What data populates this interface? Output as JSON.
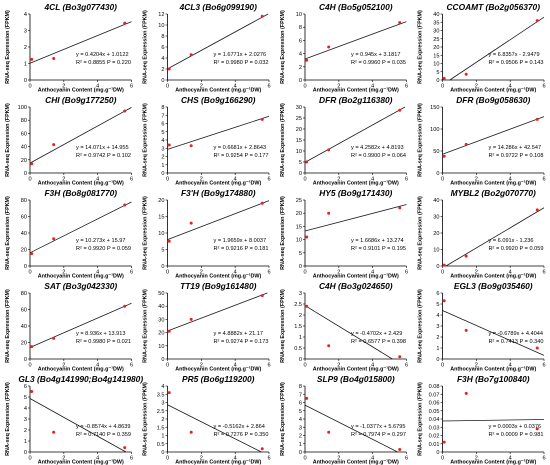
{
  "chart_data": [
    {
      "type": "scatter",
      "title": "4CL (Bo3g077430)",
      "ylabel": "RNA-seq Expression (FPKM)",
      "xlabel": "Anthocyanin Content (mg.g⁻¹DW)",
      "ylim": [
        0,
        4
      ],
      "yticks": [
        0,
        1,
        2,
        3,
        4
      ],
      "xlim": [
        0,
        6
      ],
      "xticks": [
        0,
        2,
        4,
        6
      ],
      "x": [
        0.1,
        1.4,
        5.6
      ],
      "y": [
        1.25,
        1.3,
        3.45
      ],
      "fit": {
        "slope": 0.4204,
        "intercept": 1.0122
      },
      "equation": "y = 0.4204x + 1.0122",
      "r2p": "R² = 0.8855 P = 0.220"
    },
    {
      "type": "scatter",
      "title": "4CL3 (Bo6g099190)",
      "ylabel": "RNA-seq Expression (FPKM)",
      "xlabel": "Anthocyanin Content (mg.g⁻¹DW)",
      "ylim": [
        0,
        12
      ],
      "yticks": [
        0,
        2,
        4,
        6,
        8,
        10,
        12
      ],
      "xlim": [
        0,
        6
      ],
      "xticks": [
        0,
        2,
        4,
        6
      ],
      "x": [
        0.1,
        1.4,
        5.6
      ],
      "y": [
        2.0,
        4.6,
        11.6
      ],
      "fit": {
        "slope": 1.6771,
        "intercept": 2.0276
      },
      "equation": "y = 1.6771x + 2.0276",
      "r2p": "R² = 0.9980 P = 0.032"
    },
    {
      "type": "scatter",
      "title": "C4H (Bo5g052100)",
      "ylabel": "RNA-seq Expression (FPKM)",
      "xlabel": "Anthocyanin Content (mg.g⁻¹DW)",
      "ylim": [
        0,
        10
      ],
      "yticks": [
        0,
        2,
        4,
        6,
        8,
        10
      ],
      "xlim": [
        0,
        6
      ],
      "xticks": [
        0,
        2,
        4,
        6
      ],
      "x": [
        0.1,
        1.4,
        5.6
      ],
      "y": [
        3.0,
        5.0,
        8.7
      ],
      "fit": {
        "slope": 0.945,
        "intercept": 3.1817
      },
      "equation": "y = 0.945x + 3.1817",
      "r2p": "R² = 0.9960 P = 0.035"
    },
    {
      "type": "scatter",
      "title": "CCOAMT (Bo2g056370)",
      "ylabel": "RNA-seq Expression (FPKM)",
      "xlabel": "Anthocyanin Content (mg.g⁻¹DW)",
      "ylim": [
        0,
        40
      ],
      "yticks": [
        0,
        5,
        10,
        15,
        20,
        25,
        30,
        35,
        40
      ],
      "xlim": [
        0,
        6
      ],
      "xticks": [
        0,
        2,
        4,
        6
      ],
      "x": [
        0.1,
        1.4,
        5.6
      ],
      "y": [
        1.0,
        3.5,
        36.0
      ],
      "fit": {
        "slope": 6.8357,
        "intercept": -2.9479
      },
      "equation": "y = 6.8357x - 2.9479",
      "r2p": "R² = 0.9506 P = 0.143"
    },
    {
      "type": "scatter",
      "title": "CHI (Bo9g177250)",
      "ylabel": "RNA-seq Expression (FPKM)",
      "xlabel": "Anthocyanin Content (mg.g⁻¹DW)",
      "ylim": [
        0,
        100
      ],
      "yticks": [
        0,
        20,
        40,
        60,
        80,
        100
      ],
      "xlim": [
        0,
        6
      ],
      "xticks": [
        0,
        2,
        4,
        6
      ],
      "x": [
        0.1,
        1.4,
        5.6
      ],
      "y": [
        14,
        43,
        94
      ],
      "fit": {
        "slope": 14.071,
        "intercept": 14.955
      },
      "equation": "y = 14.071x + 14.955",
      "r2p": "R² = 0.9742 P = 0.102"
    },
    {
      "type": "scatter",
      "title": "CHS (Bo9g166290)",
      "ylabel": "RNA-seq Expression (FPKM)",
      "xlabel": "Anthocyanin Content (mg.g⁻¹DW)",
      "ylim": [
        0,
        8
      ],
      "yticks": [
        0,
        1,
        2,
        3,
        4,
        5,
        6,
        7,
        8
      ],
      "xlim": [
        0,
        6
      ],
      "xticks": [
        0,
        2,
        4,
        6
      ],
      "x": [
        0.1,
        1.4,
        5.6
      ],
      "y": [
        3.4,
        3.3,
        6.5
      ],
      "fit": {
        "slope": 0.6681,
        "intercept": 2.8643
      },
      "equation": "y = 0.6681x + 2.8643",
      "r2p": "R² = 0.9254 P = 0.177"
    },
    {
      "type": "scatter",
      "title": "DFR (Bo2g116380)",
      "ylabel": "RNA-seq Expression (FPKM)",
      "xlabel": "Anthocyanin Content (mg.g⁻¹DW)",
      "ylim": [
        0,
        30
      ],
      "yticks": [
        0,
        5,
        10,
        15,
        20,
        25,
        30
      ],
      "xlim": [
        0,
        6
      ],
      "xticks": [
        0,
        2,
        4,
        6
      ],
      "x": [
        0.1,
        1.4,
        5.6
      ],
      "y": [
        5.0,
        10.5,
        28.5
      ],
      "fit": {
        "slope": 4.2582,
        "intercept": 4.8193
      },
      "equation": "y = 4.2582x + 4.8193",
      "r2p": "R² = 0.9900 P = 0.064"
    },
    {
      "type": "scatter",
      "title": "DFR (Bo9g058630)",
      "ylabel": "RNA-seq Expression (FPKM)",
      "xlabel": "Anthocyanin Content (mg.g⁻¹DW)",
      "ylim": [
        0,
        150
      ],
      "yticks": [
        0,
        50,
        100,
        150
      ],
      "xlim": [
        0,
        6
      ],
      "xticks": [
        0,
        2,
        4,
        6
      ],
      "x": [
        0.1,
        1.4,
        5.6
      ],
      "y": [
        38,
        65,
        122
      ],
      "fit": {
        "slope": 14.286,
        "intercept": 42.547
      },
      "equation": "y = 14.286x + 42.547",
      "r2p": "R² = 0.9722 P = 0.108"
    },
    {
      "type": "scatter",
      "title": "F3H (Bo8g081770)",
      "ylabel": "RNA-seq Expression (FPKM)",
      "xlabel": "Anthocyanin Content (mg.g⁻¹DW)",
      "ylim": [
        0,
        80
      ],
      "yticks": [
        0,
        20,
        40,
        60,
        80
      ],
      "xlim": [
        0,
        6
      ],
      "xticks": [
        0,
        2,
        4,
        6
      ],
      "x": [
        0.1,
        1.4,
        5.6
      ],
      "y": [
        15,
        33,
        74
      ],
      "fit": {
        "slope": 10.273,
        "intercept": 15.97
      },
      "equation": "y = 10.273x + 15.97",
      "r2p": "R² = 0.9920 P = 0.059"
    },
    {
      "type": "scatter",
      "title": "F3'H (Bo9g174880)",
      "ylabel": "RNA-seq Expression (FPKM)",
      "xlabel": "Anthocyanin Content (mg.g⁻¹DW)",
      "ylim": [
        0,
        20
      ],
      "yticks": [
        0,
        5,
        10,
        15,
        20
      ],
      "xlim": [
        0,
        6
      ],
      "xticks": [
        0,
        2,
        4,
        6
      ],
      "x": [
        0.1,
        1.4,
        5.6
      ],
      "y": [
        7.5,
        13.0,
        19.0
      ],
      "fit": {
        "slope": 1.9659,
        "intercept": 8.0037
      },
      "equation": "y = 1.9659x + 8.0037",
      "r2p": "R² = 0.9216 P = 0.181"
    },
    {
      "type": "scatter",
      "title": "HY5 (Bo9g171430)",
      "ylabel": "RNA-seq Expression (FPKM)",
      "xlabel": "Anthocyanin Content (mg.g⁻¹DW)",
      "ylim": [
        0,
        25
      ],
      "yticks": [
        0,
        5,
        10,
        15,
        20,
        25
      ],
      "xlim": [
        0,
        6
      ],
      "xticks": [
        0,
        2,
        4,
        6
      ],
      "x": [
        0.1,
        1.4,
        5.6
      ],
      "y": [
        11,
        20,
        22
      ],
      "fit": {
        "slope": 1.6686,
        "intercept": 13.274
      },
      "equation": "y = 1.6686x + 13.274",
      "r2p": "R² = 0.9101 P = 0.195"
    },
    {
      "type": "scatter",
      "title": "MYBL2 (Bo2g070770)",
      "ylabel": "RNA-seq Expression (FPKM)",
      "xlabel": "Anthocyanin Content (mg.g⁻¹DW)",
      "ylim": [
        0,
        40
      ],
      "yticks": [
        0,
        10,
        20,
        30,
        40
      ],
      "xlim": [
        0,
        6
      ],
      "xticks": [
        0,
        2,
        4,
        6
      ],
      "x": [
        0.1,
        1.4,
        5.6
      ],
      "y": [
        0.5,
        6.0,
        34.0
      ],
      "fit": {
        "slope": 6.091,
        "intercept": -1.236
      },
      "equation": "y = 6.091x - 1.236",
      "r2p": "R² = 0.9920 P = 0.059"
    },
    {
      "type": "scatter",
      "title": "SAT (Bo3g042330)",
      "ylabel": "RNA-seq Expression (FPKM)",
      "xlabel": "Anthocyanin Content (mg.g⁻¹DW)",
      "ylim": [
        0,
        80
      ],
      "yticks": [
        0,
        20,
        40,
        60,
        80
      ],
      "xlim": [
        0,
        6
      ],
      "xticks": [
        0,
        2,
        4,
        6
      ],
      "x": [
        0.1,
        1.4,
        5.6
      ],
      "y": [
        15,
        25,
        64
      ],
      "fit": {
        "slope": 8.936,
        "intercept": 13.913
      },
      "equation": "y = 8.936x + 13.913",
      "r2p": "R² = 0.9980 P = 0.021"
    },
    {
      "type": "scatter",
      "title": "TT19 (Bo9g161480)",
      "ylabel": "RNA-seq Expression (FPKM)",
      "xlabel": "Anthocyanin Content (mg.g⁻¹DW)",
      "ylim": [
        0,
        50
      ],
      "yticks": [
        0,
        10,
        20,
        30,
        40,
        50
      ],
      "xlim": [
        0,
        6
      ],
      "xticks": [
        0,
        2,
        4,
        6
      ],
      "x": [
        0.1,
        1.4,
        5.6
      ],
      "y": [
        21,
        30,
        48
      ],
      "fit": {
        "slope": 4.8882,
        "intercept": 21.17
      },
      "equation": "y = 4.8882x + 21.17",
      "r2p": "R² = 0.9274 P = 0.173"
    },
    {
      "type": "scatter",
      "title": "C4H (Bo3g024650)",
      "ylabel": "RNA-seq Expression (FPKM)",
      "xlabel": "Anthocyanin Content (mg.g⁻¹DW)",
      "ylim": [
        0,
        3
      ],
      "yticks": [
        0,
        0.5,
        1,
        1.5,
        2,
        2.5,
        3
      ],
      "xlim": [
        0,
        6
      ],
      "xticks": [
        0,
        2,
        4,
        6
      ],
      "x": [
        0.1,
        1.4,
        5.6
      ],
      "y": [
        2.4,
        0.6,
        0.1
      ],
      "fit": {
        "slope": -0.4702,
        "intercept": 2.429
      },
      "equation": "y = -0.4702x + 2.429",
      "r2p": "R² = 0.6577 P = 0.398"
    },
    {
      "type": "scatter",
      "title": "EGL3 (Bo9g035460)",
      "ylabel": "RNA-seq Expression (FPKM)",
      "xlabel": "Anthocyanin Content (mg.g⁻¹DW)",
      "ylim": [
        0,
        6
      ],
      "yticks": [
        0,
        1,
        2,
        3,
        4,
        5,
        6
      ],
      "xlim": [
        0,
        6
      ],
      "xticks": [
        0,
        2,
        4,
        6
      ],
      "x": [
        0.1,
        1.4,
        5.6
      ],
      "y": [
        5.3,
        2.6,
        1.0
      ],
      "fit": {
        "slope": -0.6789,
        "intercept": 4.4044
      },
      "equation": "y = -0.6789x + 4.4044",
      "r2p": "R² = 0.7413 P = 0.340"
    },
    {
      "type": "scatter",
      "title": "GL3 (Bo4g141990;Bo4g141980)",
      "ylabel": "RNA-seq Expression (FPKM)",
      "xlabel": "Anthocyanin Content (mg.g⁻¹DW)",
      "ylim": [
        0,
        6
      ],
      "yticks": [
        0,
        1,
        2,
        3,
        4,
        5,
        6
      ],
      "xlim": [
        0,
        6
      ],
      "xticks": [
        0,
        2,
        4,
        6
      ],
      "x": [
        0.1,
        1.4,
        5.6
      ],
      "y": [
        5.5,
        1.8,
        0.4
      ],
      "fit": {
        "slope": -0.8574,
        "intercept": 4.8639
      },
      "equation": "y = -0.8574x + 4.8639",
      "r2p": "R² = 0.7140 P = 0.359"
    },
    {
      "type": "scatter",
      "title": "PR5 (Bo6g119200)",
      "ylabel": "RNA-seq Expression (FPKM)",
      "xlabel": "Anthocyanin Content (mg.g⁻¹DW)",
      "ylim": [
        0,
        4
      ],
      "yticks": [
        0,
        0.5,
        1,
        1.5,
        2,
        2.5,
        3,
        3.5,
        4
      ],
      "xlim": [
        0,
        6
      ],
      "xticks": [
        0,
        2,
        4,
        6
      ],
      "x": [
        0.1,
        1.4,
        5.6
      ],
      "y": [
        3.6,
        1.2,
        0.2
      ],
      "fit": {
        "slope": -0.5162,
        "intercept": 2.864
      },
      "equation": "y = -0.5162x + 2.864",
      "r2p": "R² = 0.7276 P = 0.350"
    },
    {
      "type": "scatter",
      "title": "SLP9 (Bo4g015800)",
      "ylabel": "RNA-seq Expression (FPKM)",
      "xlabel": "Anthocyanin Content (mg.g⁻¹DW)",
      "ylim": [
        0,
        8
      ],
      "yticks": [
        0,
        1,
        2,
        3,
        4,
        5,
        6,
        7,
        8
      ],
      "xlim": [
        0,
        6
      ],
      "xticks": [
        0,
        2,
        4,
        6
      ],
      "x": [
        0.1,
        1.4,
        5.6
      ],
      "y": [
        6.5,
        2.4,
        0.3
      ],
      "fit": {
        "slope": -1.0377,
        "intercept": 5.6795
      },
      "equation": "y = -1.0377x + 5.6795",
      "r2p": "R² = 0.7974 P = 0.297"
    },
    {
      "type": "scatter",
      "title": "F3H (Bo7g100840)",
      "ylabel": "RNA-seq Expression (FPKM)",
      "xlabel": "Anthocyanin Content (mg.g⁻¹DW)",
      "ylim": [
        0,
        0.08
      ],
      "yticks": [
        0,
        0.01,
        0.02,
        0.03,
        0.04,
        0.05,
        0.06,
        0.07,
        0.08
      ],
      "xlim": [
        0,
        6
      ],
      "xticks": [
        0,
        2,
        4,
        6
      ],
      "x": [
        0.1,
        1.4,
        5.6
      ],
      "y": [
        0.012,
        0.071,
        0.028
      ],
      "fit": {
        "slope": 0.0003,
        "intercept": 0.0376
      },
      "equation": "y = 0.0003x + 0.0376",
      "r2p": "R² = 0.0009 P = 0.981"
    }
  ],
  "colors": {
    "point": "#e8221f",
    "line": "#1a1a1a",
    "axis": "#000000"
  }
}
